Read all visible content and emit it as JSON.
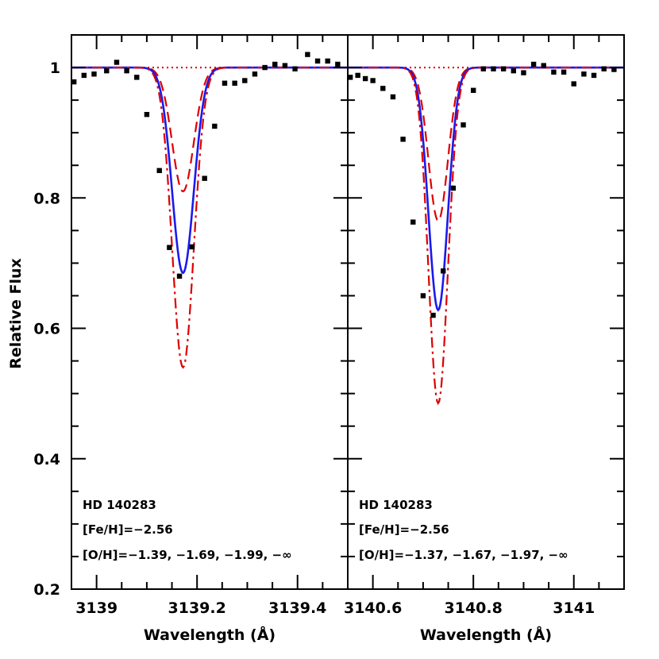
{
  "chart_data": {
    "type": "line",
    "ylabel": "Relative Flux",
    "ylim": [
      0.2,
      1.05
    ],
    "y_ticks": [
      0.2,
      0.4,
      0.6,
      0.8,
      1.0
    ],
    "y_tick_labels": [
      "0.2",
      "0.4",
      "0.6",
      "0.8",
      "1"
    ],
    "panels": [
      {
        "xlabel": "Wavelength (Å)",
        "xlim": [
          3138.95,
          3139.5
        ],
        "x_ticks": [
          3139.0,
          3139.2,
          3139.4
        ],
        "x_tick_labels": [
          "3139",
          "3139.2",
          "3139.4"
        ],
        "annotations": [
          "HD 140283",
          "[Fe/H]=−2.56",
          "[O/H]=−1.39, −1.69, −1.99, −∞"
        ],
        "line_center": 3139.172,
        "series": [
          {
            "style": "dotted",
            "color": "#dd0000",
            "depth": 0.0
          },
          {
            "style": "dashed",
            "color": "#dd0000",
            "depth": 0.19
          },
          {
            "style": "solid",
            "color": "#1a1aee",
            "depth": 0.315
          },
          {
            "style": "dashdot",
            "color": "#dd0000",
            "depth": 0.46
          }
        ],
        "observed": [
          {
            "x": 3138.955,
            "y": 0.978
          },
          {
            "x": 3138.975,
            "y": 0.988
          },
          {
            "x": 3138.995,
            "y": 0.99
          },
          {
            "x": 3139.02,
            "y": 0.995
          },
          {
            "x": 3139.04,
            "y": 1.008
          },
          {
            "x": 3139.06,
            "y": 0.995
          },
          {
            "x": 3139.08,
            "y": 0.985
          },
          {
            "x": 3139.1,
            "y": 0.928
          },
          {
            "x": 3139.125,
            "y": 0.842
          },
          {
            "x": 3139.145,
            "y": 0.724
          },
          {
            "x": 3139.165,
            "y": 0.68
          },
          {
            "x": 3139.19,
            "y": 0.725
          },
          {
            "x": 3139.215,
            "y": 0.83
          },
          {
            "x": 3139.235,
            "y": 0.91
          },
          {
            "x": 3139.255,
            "y": 0.976
          },
          {
            "x": 3139.275,
            "y": 0.976
          },
          {
            "x": 3139.295,
            "y": 0.98
          },
          {
            "x": 3139.315,
            "y": 0.99
          },
          {
            "x": 3139.335,
            "y": 1.0
          },
          {
            "x": 3139.355,
            "y": 1.005
          },
          {
            "x": 3139.375,
            "y": 1.003
          },
          {
            "x": 3139.395,
            "y": 0.998
          },
          {
            "x": 3139.42,
            "y": 1.02
          },
          {
            "x": 3139.44,
            "y": 1.01
          },
          {
            "x": 3139.46,
            "y": 1.01
          },
          {
            "x": 3139.48,
            "y": 1.005
          }
        ]
      },
      {
        "xlabel": "Wavelength (Å)",
        "xlim": [
          3140.55,
          3141.1
        ],
        "x_ticks": [
          3140.6,
          3140.8,
          3141.0
        ],
        "x_tick_labels": [
          "3140.6",
          "3140.8",
          "3141"
        ],
        "annotations": [
          "HD 140283",
          "[Fe/H]=−2.56",
          "[O/H]=−1.37, −1.67, −1.97, −∞"
        ],
        "line_center": 3140.73,
        "series": [
          {
            "style": "dotted",
            "color": "#dd0000",
            "depth": 0.0
          },
          {
            "style": "dashed",
            "color": "#dd0000",
            "depth": 0.235
          },
          {
            "style": "solid",
            "color": "#1a1aee",
            "depth": 0.372
          },
          {
            "style": "dashdot",
            "color": "#dd0000",
            "depth": 0.515
          }
        ],
        "observed": [
          {
            "x": 3140.555,
            "y": 0.985
          },
          {
            "x": 3140.57,
            "y": 0.988
          },
          {
            "x": 3140.585,
            "y": 0.983
          },
          {
            "x": 3140.6,
            "y": 0.98
          },
          {
            "x": 3140.62,
            "y": 0.968
          },
          {
            "x": 3140.64,
            "y": 0.955
          },
          {
            "x": 3140.66,
            "y": 0.89
          },
          {
            "x": 3140.68,
            "y": 0.763
          },
          {
            "x": 3140.7,
            "y": 0.65
          },
          {
            "x": 3140.72,
            "y": 0.62
          },
          {
            "x": 3140.74,
            "y": 0.688
          },
          {
            "x": 3140.76,
            "y": 0.815
          },
          {
            "x": 3140.78,
            "y": 0.912
          },
          {
            "x": 3140.8,
            "y": 0.965
          },
          {
            "x": 3140.82,
            "y": 0.998
          },
          {
            "x": 3140.84,
            "y": 0.998
          },
          {
            "x": 3140.86,
            "y": 0.998
          },
          {
            "x": 3140.88,
            "y": 0.995
          },
          {
            "x": 3140.9,
            "y": 0.992
          },
          {
            "x": 3140.92,
            "y": 1.005
          },
          {
            "x": 3140.94,
            "y": 1.003
          },
          {
            "x": 3140.96,
            "y": 0.993
          },
          {
            "x": 3140.98,
            "y": 0.993
          },
          {
            "x": 3141.0,
            "y": 0.975
          },
          {
            "x": 3141.02,
            "y": 0.99
          },
          {
            "x": 3141.04,
            "y": 0.988
          },
          {
            "x": 3141.06,
            "y": 0.998
          },
          {
            "x": 3141.08,
            "y": 0.997
          }
        ]
      }
    ]
  }
}
